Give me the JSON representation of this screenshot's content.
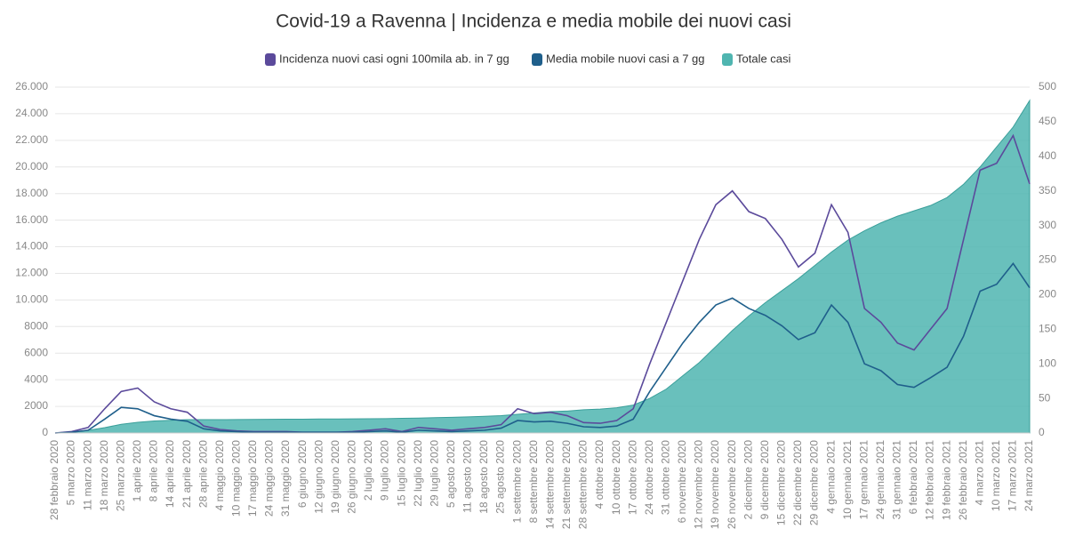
{
  "chart_data": {
    "type": "line",
    "title": "Covid-19 a Ravenna | Incidenza e media mobile dei nuovi casi",
    "categories": [
      "28 febbraio 2020",
      "5 marzo 2020",
      "11 marzo 2020",
      "18 marzo 2020",
      "25 marzo 2020",
      "1 aprile 2020",
      "8 aprile 2020",
      "14 aprile 2020",
      "21 aprile 2020",
      "28 aprile 2020",
      "4 maggio 2020",
      "10 maggio 2020",
      "17 maggio 2020",
      "24 maggio 2020",
      "31 maggio 2020",
      "6 giugno 2020",
      "12 giugno 2020",
      "19 giugno 2020",
      "26 giugno 2020",
      "2 luglio 2020",
      "9 luglio 2020",
      "15 luglio 2020",
      "22 luglio 2020",
      "29 luglio 2020",
      "5 agosto 2020",
      "11 agosto 2020",
      "18 agosto 2020",
      "25 agosto 2020",
      "1 settembre 2020",
      "8 settembre 2020",
      "14 settembre 2020",
      "21 settembre 2020",
      "28 settembre 2020",
      "4 ottobre 2020",
      "10 ottobre 2020",
      "17 ottobre 2020",
      "24 ottobre 2020",
      "31 ottobre 2020",
      "6 novembre 2020",
      "12 novembre 2020",
      "19 novembre 2020",
      "26 novembre 2020",
      "2 dicembre 2020",
      "9 dicembre 2020",
      "15 dicembre 2020",
      "22 dicembre 2020",
      "29 dicembre 2020",
      "4 gennaio 2021",
      "10 gennaio 2021",
      "17 gennaio 2021",
      "24 gennaio 2021",
      "31 gennaio 2021",
      "6 febbraio 2021",
      "12 febbraio 2021",
      "19 febbraio 2021",
      "26 febbraio 2021",
      "4 marzo 2021",
      "10 marzo 2021",
      "17 marzo 2021",
      "24 marzo 2021"
    ],
    "series": [
      {
        "name": "Incidenza nuovi casi ogni 100mila ab. in 7 gg",
        "color": "#5b4a9b",
        "axis": "y2",
        "values": [
          0,
          2,
          8,
          35,
          60,
          65,
          45,
          35,
          30,
          10,
          5,
          3,
          2,
          2,
          2,
          1,
          1,
          1,
          2,
          4,
          6,
          2,
          8,
          6,
          4,
          6,
          8,
          12,
          35,
          28,
          30,
          25,
          15,
          14,
          18,
          35,
          100,
          160,
          220,
          280,
          330,
          350,
          320,
          310,
          280,
          240,
          260,
          330,
          290,
          180,
          160,
          130,
          120,
          150,
          180,
          280,
          380,
          390,
          430,
          360
        ]
      },
      {
        "name": "Media mobile nuovi casi a 7 gg",
        "color": "#1f5f8b",
        "axis": "y2",
        "values": [
          0,
          1,
          4,
          20,
          37,
          35,
          25,
          20,
          17,
          6,
          3,
          2,
          1,
          1,
          1,
          1,
          1,
          1,
          1,
          2,
          3,
          1,
          4,
          3,
          2,
          3,
          4,
          7,
          18,
          16,
          17,
          14,
          9,
          8,
          10,
          20,
          60,
          95,
          130,
          160,
          185,
          195,
          180,
          170,
          155,
          135,
          145,
          185,
          160,
          100,
          90,
          70,
          66,
          80,
          95,
          140,
          205,
          215,
          245,
          210
        ]
      },
      {
        "name": "Totale casi",
        "color": "#4fb5b0",
        "type": "area",
        "values": [
          0,
          50,
          200,
          400,
          650,
          800,
          900,
          950,
          1000,
          1000,
          1000,
          1010,
          1020,
          1030,
          1040,
          1040,
          1050,
          1050,
          1060,
          1070,
          1080,
          1100,
          1120,
          1150,
          1180,
          1210,
          1250,
          1300,
          1400,
          1500,
          1600,
          1650,
          1750,
          1800,
          1900,
          2100,
          2600,
          3300,
          4300,
          5300,
          6500,
          7700,
          8800,
          9800,
          10700,
          11600,
          12600,
          13600,
          14500,
          15200,
          15800,
          16300,
          16700,
          17100,
          17700,
          18700,
          20000,
          21500,
          23000,
          25000
        ]
      }
    ],
    "ylim": [
      0,
      26000
    ],
    "yticks": [
      0,
      2000,
      4000,
      6000,
      8000,
      {
        "value": 10000,
        "label": "10.000"
      },
      {
        "value": 12000,
        "label": "12.000"
      },
      {
        "value": 14000,
        "label": "14.000"
      },
      {
        "value": 16000,
        "label": "16.000"
      },
      {
        "value": 18000,
        "label": "18.000"
      },
      {
        "value": 20000,
        "label": "20.000"
      },
      {
        "value": 22000,
        "label": "22.000"
      },
      {
        "value": 24000,
        "label": "24.000"
      },
      {
        "value": 26000,
        "label": "26.000"
      }
    ],
    "y2lim": [
      0,
      500
    ],
    "y2ticks": [
      0,
      50,
      100,
      150,
      200,
      250,
      300,
      350,
      400,
      450,
      500
    ],
    "grid": true
  }
}
